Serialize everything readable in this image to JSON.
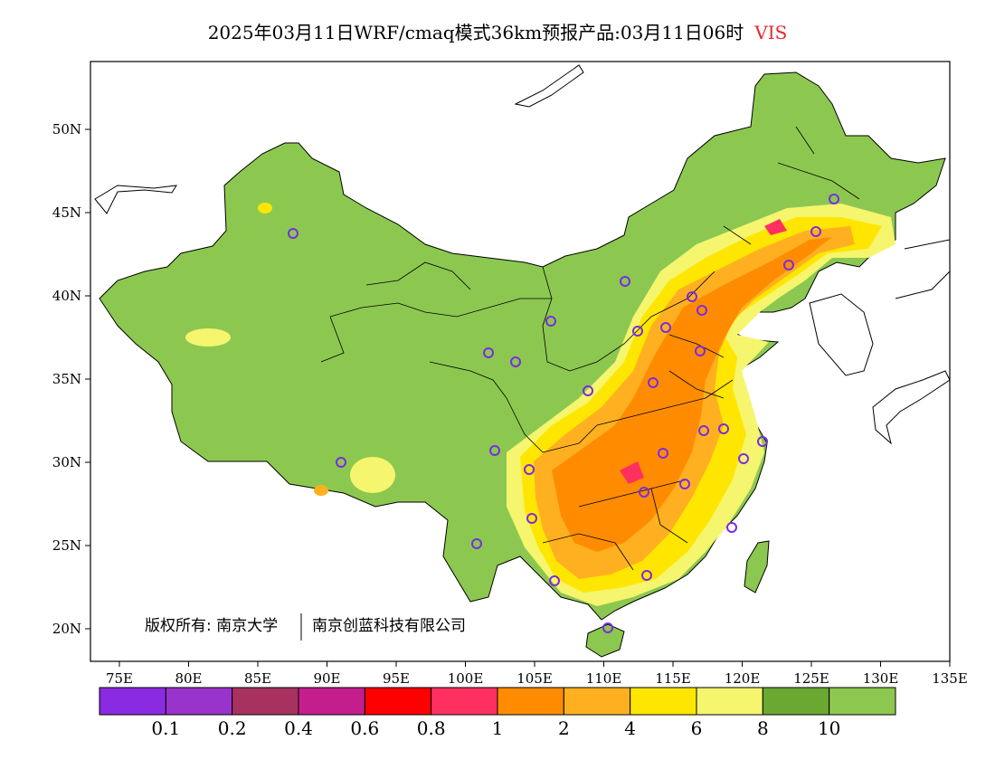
{
  "title": {
    "text": "2025年03月11日WRF/cmaq模式36km预报产品:03月11日06时",
    "variable": "VIS"
  },
  "axes": {
    "lon_ticks": [
      "75E",
      "80E",
      "85E",
      "90E",
      "95E",
      "100E",
      "105E",
      "110E",
      "115E",
      "120E",
      "125E",
      "130E",
      "135E"
    ],
    "lat_ticks": [
      "50N",
      "45N",
      "40N",
      "35N",
      "30N",
      "25N",
      "20N"
    ]
  },
  "copyright": {
    "left": "版权所有: 南京大学",
    "right": "南京创蓝科技有限公司"
  },
  "legend": {
    "colors": [
      "#8a2be2",
      "#9933cc",
      "#a8325f",
      "#c41e8c",
      "#ff0000",
      "#ff3060",
      "#ff8c00",
      "#ffb020",
      "#ffe600",
      "#f5f56e",
      "#6aa832",
      "#8cc850"
    ],
    "labels": [
      "0.1",
      "0.2",
      "0.4",
      "0.6",
      "0.8",
      "1",
      "2",
      "4",
      "6",
      "8",
      "10"
    ]
  },
  "colors": {
    "land_high_vis": "#8cc850",
    "station_marker": "#7b2be2",
    "border": "#000000"
  }
}
